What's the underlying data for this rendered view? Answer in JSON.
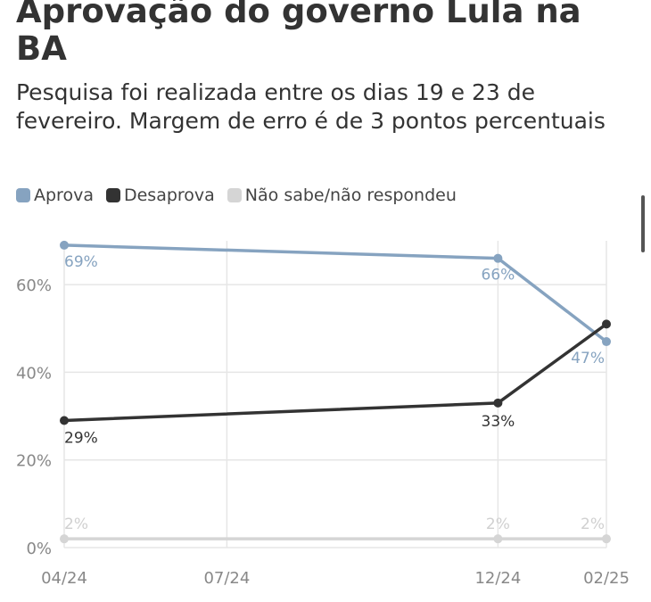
{
  "chart_data": {
    "type": "line",
    "title": "Aprovação do governo Lula na BA",
    "subtitle": "Pesquisa foi realizada entre os dias 19 e 23 de fevereiro. Margem de erro é de 3 pontos percentuais",
    "x": [
      "2024-04",
      "2024-12",
      "2025-02"
    ],
    "x_ticks": [
      "2024-04",
      "2024-07",
      "2024-12",
      "2025-02"
    ],
    "x_tick_labels": [
      "04/24",
      "07/24",
      "12/24",
      "02/25"
    ],
    "y_ticks": [
      0,
      20,
      40,
      60
    ],
    "y_tick_labels": [
      "0%",
      "20%",
      "40%",
      "60%"
    ],
    "ylim": [
      0,
      70
    ],
    "xlabel": "",
    "ylabel": "",
    "grid": true,
    "legend_position": "top-left",
    "series": [
      {
        "name": "Aprova",
        "values": [
          69,
          66,
          47
        ],
        "labels": [
          "69%",
          "66%",
          "47%"
        ],
        "color": "#86a3c0"
      },
      {
        "name": "Desaprova",
        "values": [
          29,
          33,
          51
        ],
        "labels": [
          "29%",
          "33%",
          ""
        ],
        "color": "#333333"
      },
      {
        "name": "Não sabe/não respondeu",
        "values": [
          2,
          2,
          2
        ],
        "labels": [
          "2%",
          "2%",
          "2%"
        ],
        "color": "#d5d5d5"
      }
    ]
  }
}
